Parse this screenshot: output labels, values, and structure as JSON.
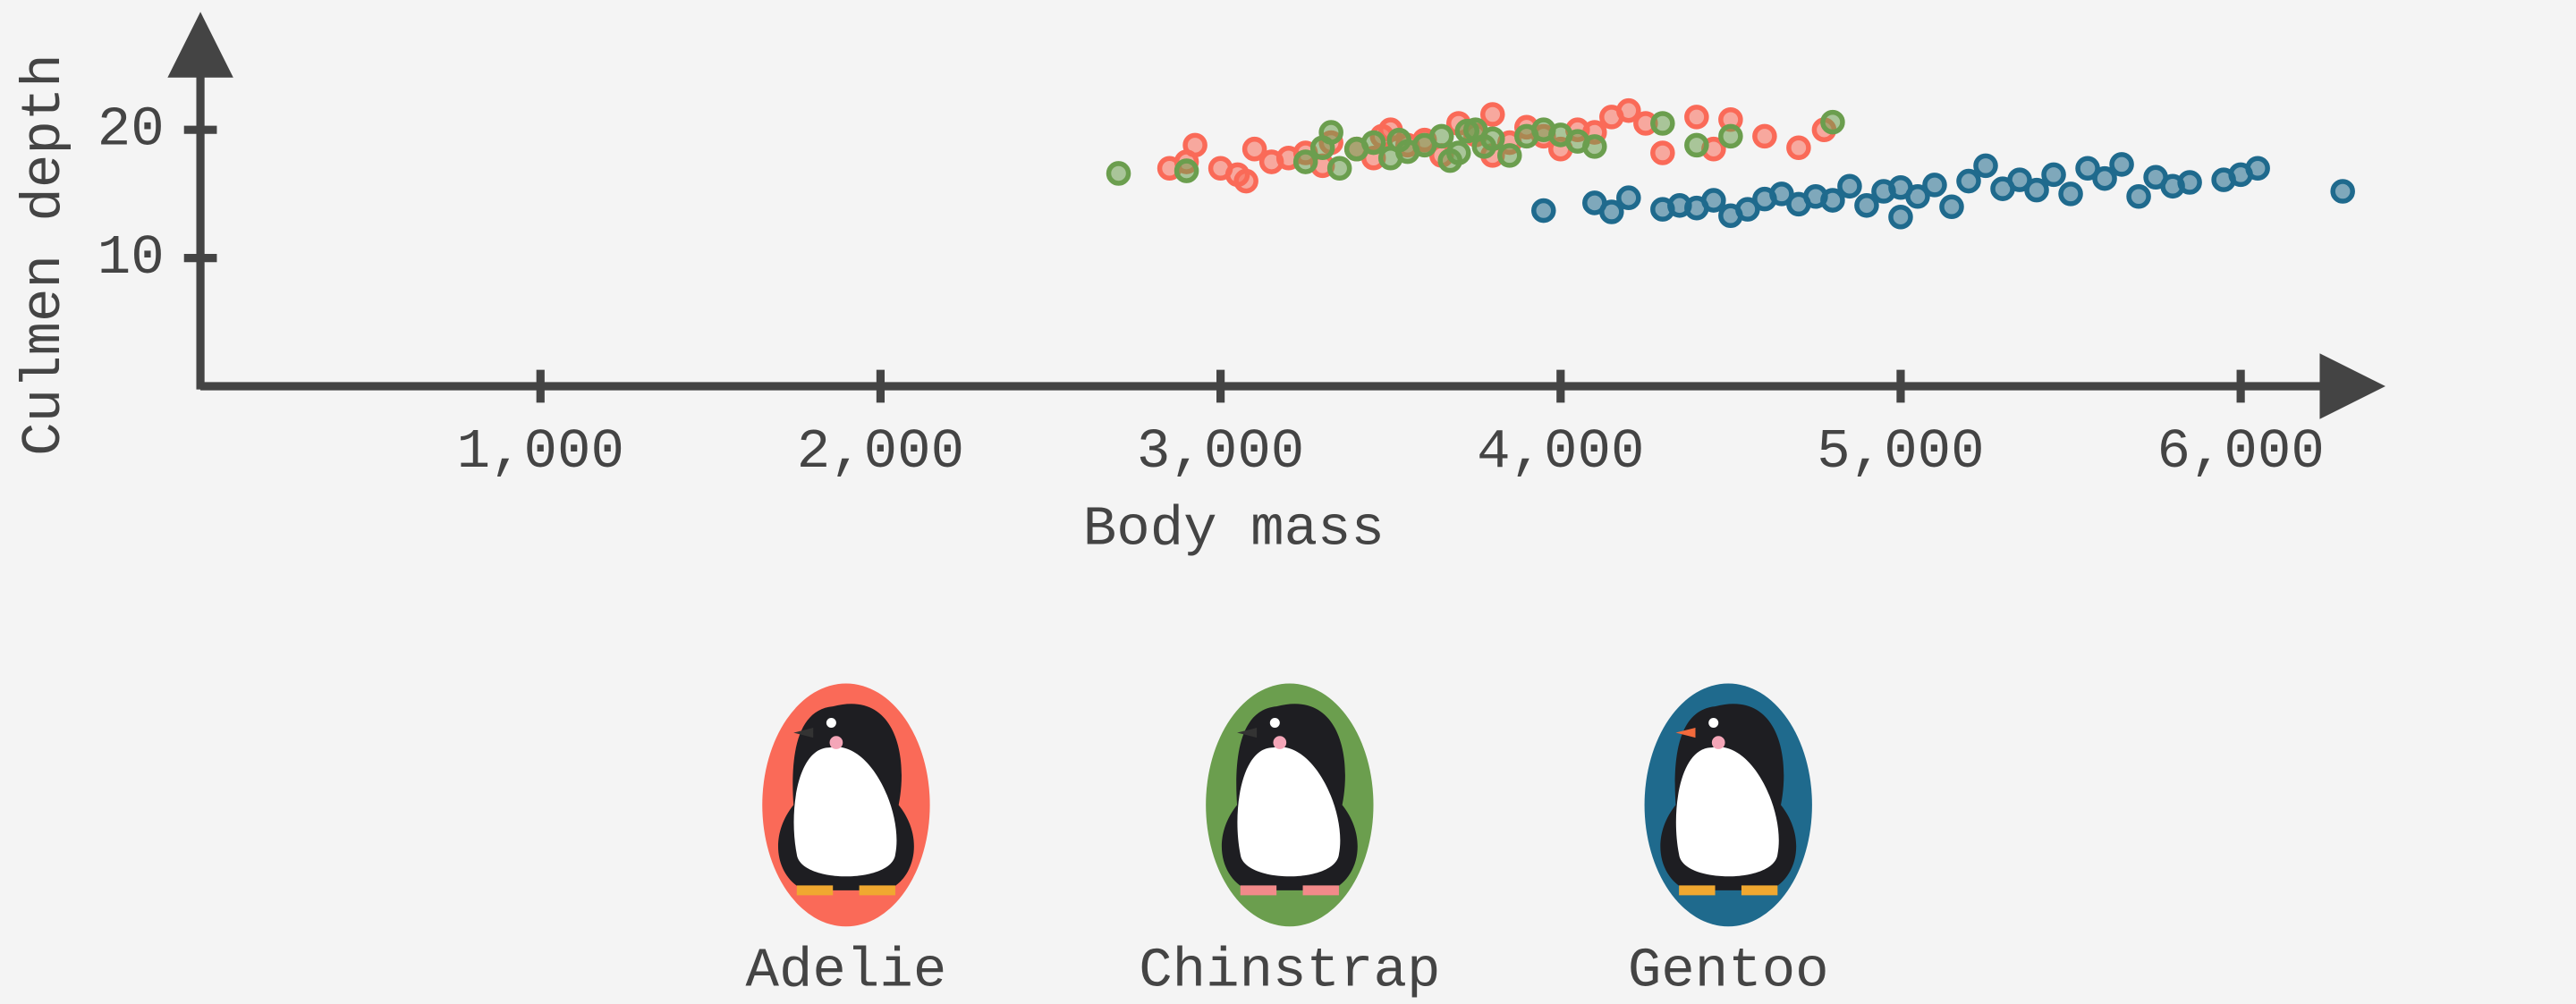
{
  "chart_data": {
    "type": "scatter",
    "xlabel": "Body mass",
    "ylabel": "Culmen depth",
    "xlim": [
      0,
      6300
    ],
    "ylim": [
      0,
      26
    ],
    "xticks": [
      {
        "value": 1000,
        "label": "1,000"
      },
      {
        "value": 2000,
        "label": "2,000"
      },
      {
        "value": 3000,
        "label": "3,000"
      },
      {
        "value": 4000,
        "label": "4,000"
      },
      {
        "value": 5000,
        "label": "5,000"
      },
      {
        "value": 6000,
        "label": "6,000"
      }
    ],
    "yticks": [
      10,
      20
    ],
    "series": [
      {
        "name": "Adelie",
        "color": "#fa6a58",
        "x": [
          2850,
          2900,
          2925,
          3000,
          3050,
          3075,
          3100,
          3150,
          3200,
          3250,
          3300,
          3325,
          3400,
          3450,
          3475,
          3500,
          3550,
          3600,
          3650,
          3700,
          3750,
          3800,
          3800,
          3850,
          3900,
          3950,
          4000,
          4050,
          4100,
          4150,
          4200,
          4250,
          4300,
          4400,
          4450,
          4500,
          4600,
          4700,
          4775
        ],
        "values": [
          17,
          17.5,
          18.8,
          17,
          16.5,
          16,
          18.5,
          17.5,
          17.8,
          18.2,
          17.2,
          19,
          18.5,
          17.8,
          19.5,
          20,
          18.8,
          19.2,
          18,
          20.5,
          19.6,
          21.2,
          18,
          19,
          20.2,
          19.5,
          18.5,
          20,
          19.8,
          21,
          21.5,
          20.5,
          18.2,
          21,
          18.5,
          20.8,
          19.5,
          18.6,
          20
        ]
      },
      {
        "name": "Chinstrap",
        "color": "#6b9e4e",
        "x": [
          2700,
          2900,
          3250,
          3300,
          3325,
          3350,
          3400,
          3450,
          3500,
          3525,
          3550,
          3600,
          3650,
          3675,
          3700,
          3725,
          3750,
          3775,
          3800,
          3850,
          3900,
          3950,
          4000,
          4050,
          4100,
          4300,
          4400,
          4500,
          4800
        ],
        "values": [
          16.6,
          16.8,
          17.5,
          18.6,
          19.8,
          17,
          18.5,
          19,
          17.8,
          19.2,
          18.3,
          18.8,
          19.5,
          17.6,
          18.2,
          19.9,
          20,
          18.7,
          19.3,
          18,
          19.5,
          20,
          19.6,
          19.1,
          18.7,
          20.5,
          18.8,
          19.5,
          20.6
        ]
      },
      {
        "name": "Gentoo",
        "color": "#1f6a8d",
        "x": [
          3950,
          4100,
          4150,
          4200,
          4300,
          4350,
          4400,
          4450,
          4500,
          4550,
          4600,
          4650,
          4700,
          4750,
          4800,
          4850,
          4900,
          4950,
          5000,
          5000,
          5050,
          5100,
          5150,
          5200,
          5250,
          5300,
          5350,
          5400,
          5450,
          5500,
          5550,
          5600,
          5650,
          5700,
          5750,
          5800,
          5850,
          5950,
          6000,
          6050,
          6300
        ],
        "values": [
          13.7,
          14.3,
          13.6,
          14.7,
          13.8,
          14.1,
          13.9,
          14.5,
          13.3,
          13.8,
          14.6,
          15,
          14.2,
          14.8,
          14.5,
          15.6,
          14.1,
          15.2,
          13.2,
          15.5,
          14.8,
          15.7,
          14,
          16,
          17.2,
          15.4,
          16.1,
          15.3,
          16.5,
          15,
          17,
          16.2,
          17.3,
          14.8,
          16.3,
          15.6,
          15.9,
          16.1,
          16.5,
          17,
          15.2
        ]
      }
    ]
  }
}
